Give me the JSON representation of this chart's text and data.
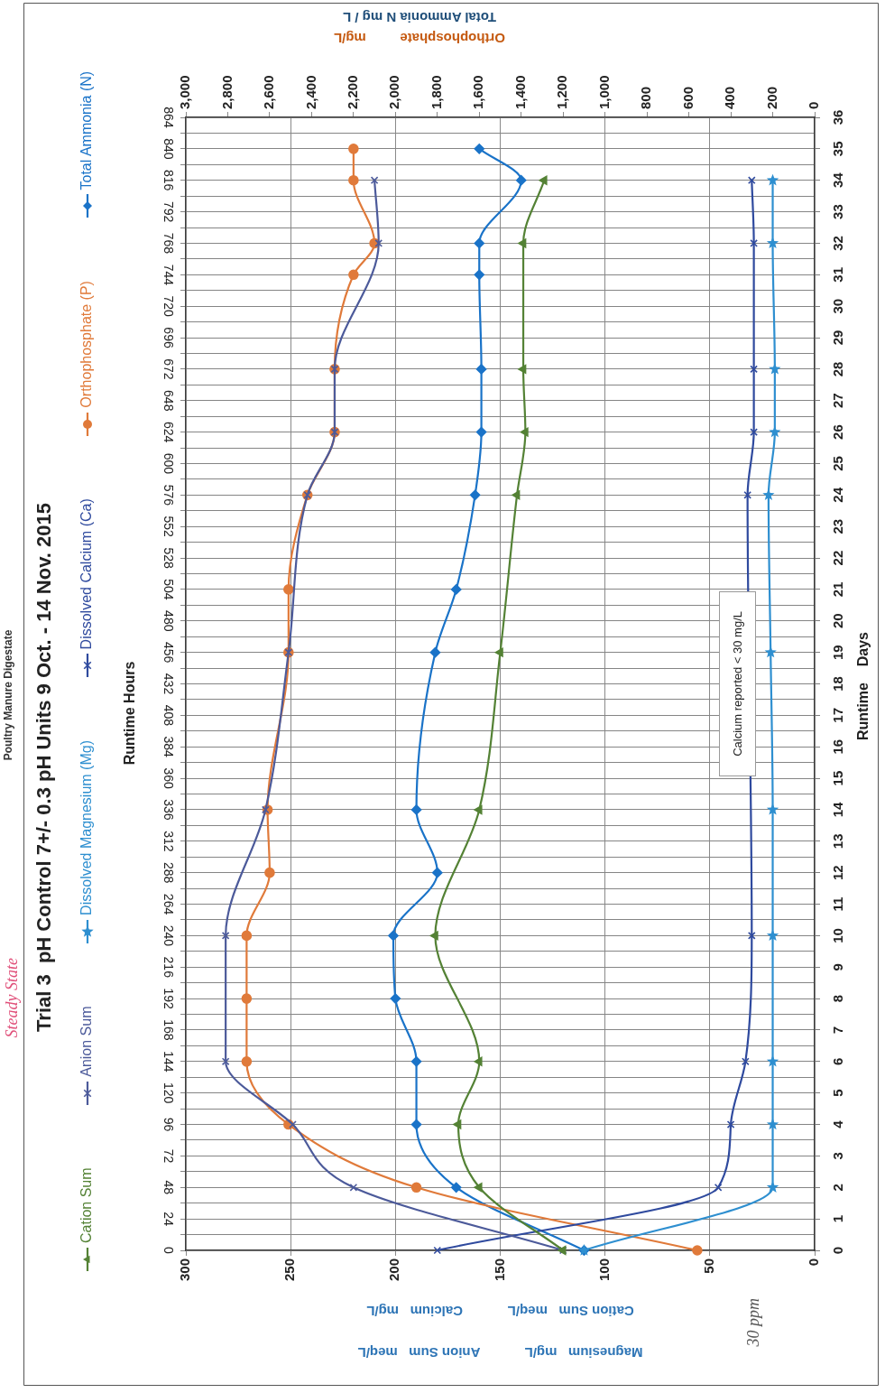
{
  "chart_data": {
    "type": "line",
    "title": "Trial 3  pH Control 7+/- 0.3 pH Units 9 Oct. - 14 Nov. 2015",
    "subtitle": "Poultry Manure Digestate",
    "xlabel": "Magnesium   mg/L            Anion Sum   meq/L\nCation Sum   meq/L            Calcium   mg/L",
    "x2label": "Orthophosphate         mg/L\nTotal Ammonia N mg / L",
    "ylabel": "Runtime Hours",
    "y2label": "Runtime    Days",
    "legend": "left",
    "grid": true,
    "xlim": [
      300,
      0
    ],
    "xticks": [
      300,
      250,
      200,
      150,
      100,
      50,
      0
    ],
    "x2lim": [
      3000,
      0
    ],
    "x2ticks": [
      {
        "value": 3000,
        "label": "3,000"
      },
      {
        "value": 2800,
        "label": "2,800"
      },
      {
        "value": 2600,
        "label": "2,600"
      },
      {
        "value": 2400,
        "label": "2,400"
      },
      {
        "value": 2200,
        "label": "2,200"
      },
      {
        "value": 2000,
        "label": "2,000"
      },
      {
        "value": 1800,
        "label": "1,800"
      },
      {
        "value": 1600,
        "label": "1,600"
      },
      {
        "value": 1400,
        "label": "1,400"
      },
      {
        "value": 1200,
        "label": "1,200"
      },
      {
        "value": 1000,
        "label": "1,000"
      },
      800,
      600,
      400,
      200,
      0
    ],
    "ylim": [
      0,
      864
    ],
    "yticks": [
      0,
      {
        "value": 12,
        "label": null
      },
      24,
      {
        "value": 36,
        "label": null
      },
      48,
      {
        "value": 60,
        "label": null
      },
      72,
      {
        "value": 84,
        "label": null
      },
      96,
      {
        "value": 108,
        "label": null
      },
      120,
      {
        "value": 132,
        "label": null
      },
      144,
      {
        "value": 156,
        "label": null
      },
      168,
      {
        "value": 180,
        "label": null
      },
      192,
      {
        "value": 204,
        "label": null
      },
      216,
      {
        "value": 228,
        "label": null
      },
      240,
      {
        "value": 252,
        "label": null
      },
      264,
      {
        "value": 276,
        "label": null
      },
      288,
      {
        "value": 300,
        "label": null
      },
      312,
      {
        "value": 324,
        "label": null
      },
      336,
      {
        "value": 348,
        "label": null
      },
      360,
      {
        "value": 372,
        "label": null
      },
      384,
      {
        "value": 396,
        "label": null
      },
      408,
      {
        "value": 420,
        "label": null
      },
      432,
      {
        "value": 444,
        "label": null
      },
      456,
      {
        "value": 468,
        "label": null
      },
      480,
      {
        "value": 492,
        "label": null
      },
      504,
      {
        "value": 516,
        "label": null
      },
      528,
      {
        "value": 540,
        "label": null
      },
      552,
      {
        "value": 564,
        "label": null
      },
      576,
      {
        "value": 588,
        "label": null
      },
      600,
      {
        "value": 612,
        "label": null
      },
      624,
      {
        "value": 636,
        "label": null
      },
      648,
      {
        "value": 660,
        "label": null
      },
      672,
      {
        "value": 684,
        "label": null
      },
      696,
      {
        "value": 708,
        "label": null
      },
      720,
      {
        "value": 732,
        "label": null
      },
      744,
      {
        "value": 756,
        "label": null
      },
      768,
      {
        "value": 780,
        "label": null
      },
      792,
      {
        "value": 804,
        "label": null
      },
      816,
      {
        "value": 828,
        "label": null
      },
      840,
      {
        "value": 852,
        "label": null
      },
      864
    ],
    "y2lim": [
      0,
      36
    ],
    "y2ticks": [
      0,
      1,
      2,
      3,
      4,
      5,
      6,
      7,
      8,
      9,
      10,
      11,
      12,
      13,
      14,
      15,
      16,
      17,
      18,
      19,
      20,
      21,
      22,
      23,
      24,
      25,
      26,
      27,
      28,
      29,
      30,
      31,
      32,
      33,
      34,
      35,
      36
    ],
    "annotations": [
      "Calcium reported < 30 mg/L",
      "30 ppm",
      "Steady State"
    ],
    "series": [
      {
        "name": "Cation Sum",
        "color": "#548235",
        "marker": "triangle",
        "x": [
          120,
          160,
          170,
          160,
          181,
          160,
          150,
          142,
          138,
          139,
          139,
          129
        ],
        "values": [
          0,
          48,
          96,
          144,
          240,
          336,
          456,
          576,
          624,
          672,
          768,
          816
        ]
      },
      {
        "name": "Anion Sum",
        "color": "#4c5a9a",
        "marker": "cross",
        "x": [
          120,
          220,
          249,
          281,
          281,
          262,
          251,
          242,
          229,
          229,
          208,
          210
        ],
        "values": [
          0,
          48,
          96,
          144,
          240,
          336,
          456,
          576,
          624,
          672,
          768,
          816
        ]
      },
      {
        "name": "Dissolved Magnesium (Mg)",
        "color": "#2e8fd0",
        "marker": "star",
        "x": [
          110,
          20,
          20,
          20,
          20,
          20,
          21,
          22,
          19,
          19,
          20,
          20
        ],
        "values": [
          0,
          48,
          96,
          144,
          240,
          336,
          456,
          576,
          624,
          672,
          768,
          816
        ]
      },
      {
        "name": "Dissolved Calcium (Ca)",
        "color": "#2f4a9e",
        "marker": "cross",
        "x": [
          180,
          46,
          40,
          33,
          30,
          32,
          29,
          29,
          29,
          30
        ],
        "values": [
          0,
          48,
          96,
          144,
          240,
          576,
          624,
          672,
          768,
          816
        ]
      },
      {
        "name": "Orthophosphate (P)",
        "color": "#e07a3a",
        "marker": "circle",
        "axis": "x2",
        "x": [
          560,
          1900,
          2510,
          2710,
          2710,
          2710,
          2600,
          2610,
          2510,
          2510,
          2420,
          2290,
          2290,
          2200,
          2100,
          2200,
          2200
        ],
        "values": [
          0,
          48,
          96,
          144,
          192,
          240,
          288,
          336,
          456,
          504,
          576,
          624,
          672,
          744,
          768,
          816,
          840
        ]
      },
      {
        "name": "Total Ammonia (N)",
        "color": "#1a73c8",
        "marker": "diamond",
        "axis": "x2",
        "x": [
          1100,
          1710,
          1900,
          1900,
          2000,
          2010,
          1800,
          1900,
          1810,
          1710,
          1620,
          1590,
          1590,
          1600,
          1600,
          1400,
          1600
        ],
        "values": [
          0,
          48,
          96,
          144,
          192,
          240,
          288,
          336,
          456,
          504,
          576,
          624,
          672,
          744,
          768,
          816,
          840
        ]
      }
    ]
  }
}
